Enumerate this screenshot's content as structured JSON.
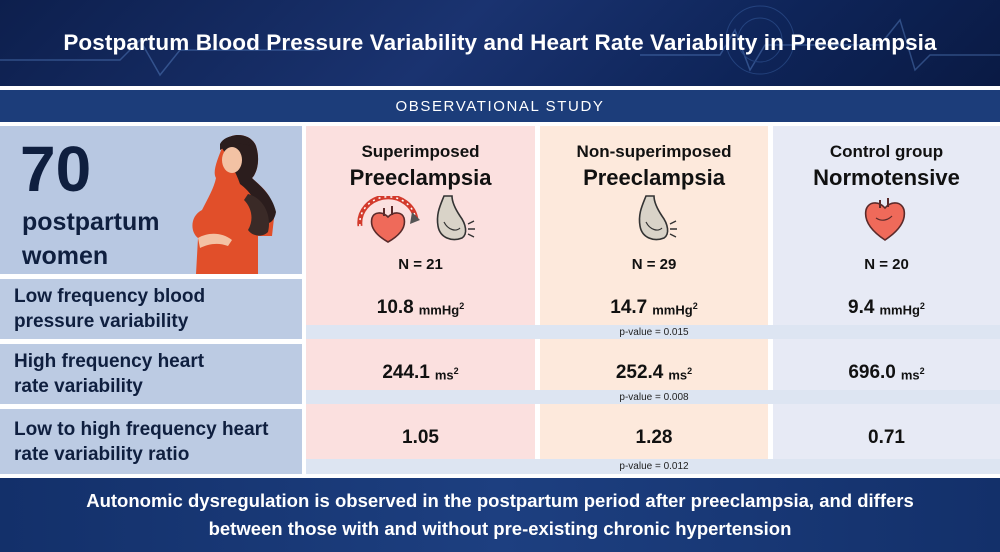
{
  "title": "Postpartum Blood Pressure Variability and Heart Rate Variability in Preeclampsia",
  "study_type": "OBSERVATIONAL STUDY",
  "cohort": {
    "count": "70",
    "line1": "postpartum",
    "line2": "women"
  },
  "groups": [
    {
      "line1": "Superimposed",
      "line2": "Preeclampsia",
      "n": "N = 21"
    },
    {
      "line1": "Non-superimposed",
      "line2": "Preeclampsia",
      "n": "N = 29"
    },
    {
      "line1": "Control group",
      "line2": "Normotensive",
      "n": "N = 20"
    }
  ],
  "rows": [
    {
      "label_line1": "Low frequency blood",
      "label_line2": "pressure variability",
      "values": [
        "10.8",
        "14.7",
        "9.4"
      ],
      "unit": "mmHg",
      "unit_sup": "2",
      "pvalue": "p-value = 0.015"
    },
    {
      "label_line1": "High frequency heart",
      "label_line2": "rate variability",
      "values": [
        "244.1",
        "252.4",
        "696.0"
      ],
      "unit": "ms",
      "unit_sup": "2",
      "pvalue": "p-value = 0.008"
    },
    {
      "label_line1": "Low to high frequency heart",
      "label_line2": "rate variability ratio",
      "values": [
        "1.05",
        "1.28",
        "0.71"
      ],
      "pvalue": "p-value = 0.012"
    }
  ],
  "conclusion_line1": "Autonomic dysregulation is observed in the postpartum period after preeclampsia, and differs",
  "conclusion_line2": "between those with and without pre-existing chronic hypertension",
  "colors": {
    "header_bg": "#0d1f4d",
    "subheader_bg": "#1c3d7a",
    "label_bg": "#bccbe3",
    "pvalue_bg": "#dde5f2",
    "col1_bg": "#fbe0df",
    "col2_bg": "#fde9dc",
    "col3_bg": "#e7eaf5",
    "footer_bg": "#1d3f80"
  },
  "icons": [
    "pregnant-woman-icon",
    "bp-gauge-heart-icon",
    "pregnant-belly-icon",
    "heart-icon"
  ]
}
